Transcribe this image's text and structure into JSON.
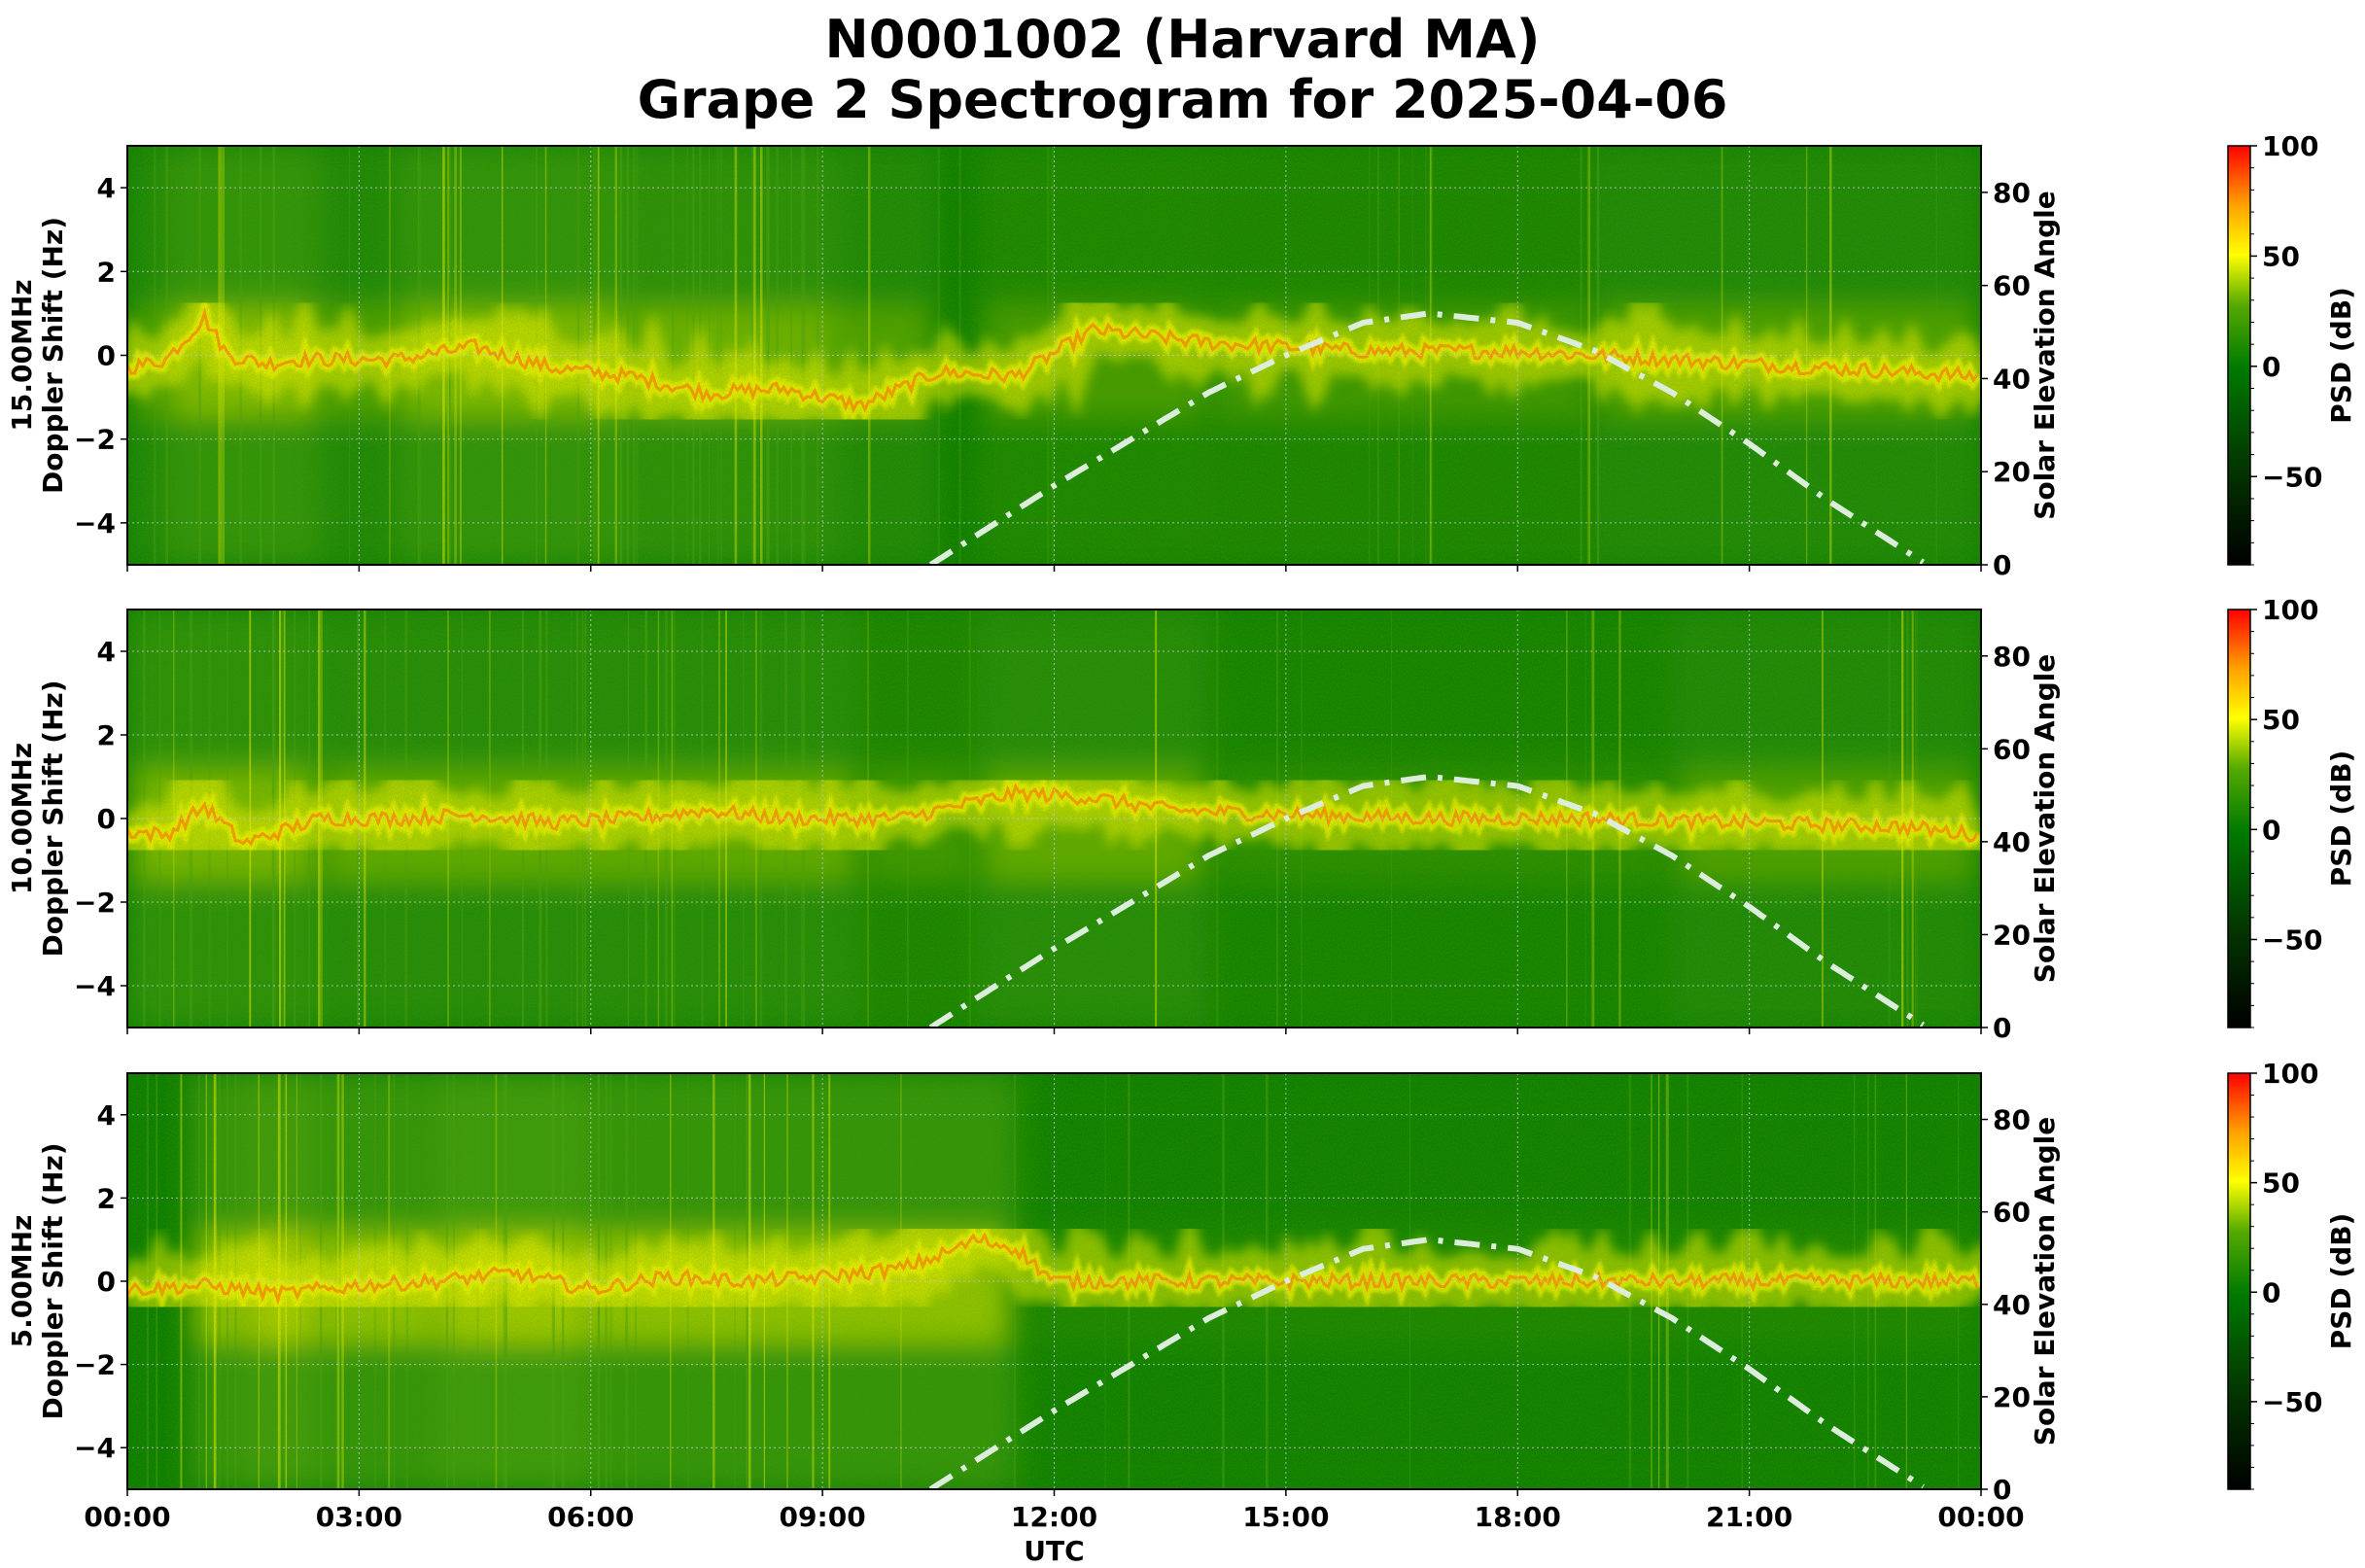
{
  "title": {
    "line1": "N0001002 (Harvard MA)",
    "line2": "Grape 2 Spectrogram for 2025-04-06"
  },
  "colors": {
    "background_green": "#0b7d00",
    "mid_green": "#4aa011",
    "yellow": "#eef000",
    "orange": "#ff8c00",
    "red": "#ff1a00",
    "solar_line": "#dceedb",
    "grid": "#c8c8c8"
  },
  "chart_data": [
    {
      "type": "heatmap",
      "panel": "15.00MHz",
      "ylabel_line1": "15.00MHz",
      "ylabel_line2": "Doppler Shift (Hz)",
      "xlabel": "",
      "ylim": [
        -5,
        5
      ],
      "yticks": [
        "4",
        "2",
        "0",
        "−2",
        "−4"
      ],
      "ytick_values": [
        4,
        2,
        0,
        -2,
        -4
      ],
      "right_ylabel": "Solar Elevation Angle",
      "right_ylim": [
        0,
        90
      ],
      "right_yticks": [
        "80",
        "60",
        "40",
        "20",
        "0"
      ],
      "right_ytick_values": [
        80,
        60,
        40,
        20,
        0
      ],
      "xlim_hours": [
        0,
        24
      ],
      "colorbar": {
        "label": "PSD (dB)",
        "range": [
          -90,
          100
        ],
        "ticks": [
          "100",
          "50",
          "0",
          "−50"
        ],
        "tick_values": [
          100,
          50,
          0,
          -50
        ]
      },
      "doppler_trace": {
        "hours": [
          0,
          0.5,
          1.0,
          1.3,
          1.8,
          2.2,
          3.5,
          4.5,
          5.5,
          6.5,
          7.5,
          8.5,
          9.5,
          10.5,
          11.5,
          12.5,
          14,
          16,
          18,
          20,
          22,
          24
        ],
        "hz": [
          -0.3,
          -0.1,
          0.9,
          0.0,
          -0.2,
          -0.1,
          -0.1,
          0.2,
          -0.3,
          -0.5,
          -0.9,
          -0.8,
          -1.2,
          -0.4,
          -0.5,
          0.6,
          0.3,
          0.1,
          0.1,
          -0.1,
          -0.3,
          -0.5
        ]
      },
      "solar_elevation": {
        "hours": [
          10.4,
          12,
          14,
          15,
          16,
          16.85,
          18,
          19,
          20,
          21,
          22,
          23.3
        ],
        "degrees": [
          0,
          17,
          37,
          45,
          52,
          54,
          52,
          46,
          37,
          26,
          14,
          0
        ]
      }
    },
    {
      "type": "heatmap",
      "panel": "10.00MHz",
      "ylabel_line1": "10.00MHz",
      "ylabel_line2": "Doppler Shift (Hz)",
      "xlabel": "",
      "ylim": [
        -5,
        5
      ],
      "yticks": [
        "4",
        "2",
        "0",
        "−2",
        "−4"
      ],
      "ytick_values": [
        4,
        2,
        0,
        -2,
        -4
      ],
      "right_ylabel": "Solar Elevation Angle",
      "right_ylim": [
        0,
        90
      ],
      "right_yticks": [
        "80",
        "60",
        "40",
        "20",
        "0"
      ],
      "right_ytick_values": [
        80,
        60,
        40,
        20,
        0
      ],
      "xlim_hours": [
        0,
        24
      ],
      "colorbar": {
        "label": "PSD (dB)",
        "range": [
          -90,
          100
        ],
        "ticks": [
          "100",
          "50",
          "0",
          "−50"
        ],
        "tick_values": [
          100,
          50,
          0,
          -50
        ]
      },
      "doppler_trace": {
        "hours": [
          0,
          0.5,
          1.0,
          1.5,
          2.5,
          3.5,
          4.5,
          5.5,
          6.5,
          7.5,
          8.5,
          10,
          11.5,
          12.5,
          13.5,
          15,
          17,
          19,
          21,
          23,
          24
        ],
        "hz": [
          -0.3,
          -0.4,
          0.3,
          -0.6,
          0.0,
          0.0,
          0.1,
          -0.1,
          0.0,
          0.2,
          0.0,
          0.0,
          0.6,
          0.5,
          0.2,
          0.1,
          0.0,
          0.0,
          -0.1,
          -0.2,
          -0.4
        ]
      },
      "solar_elevation": {
        "hours": [
          10.4,
          12,
          14,
          15,
          16,
          16.85,
          18,
          19,
          20,
          21,
          22,
          23.3
        ],
        "degrees": [
          0,
          17,
          37,
          45,
          52,
          54,
          52,
          46,
          37,
          26,
          14,
          0
        ]
      }
    },
    {
      "type": "heatmap",
      "panel": "5.00MHz",
      "ylabel_line1": "5.00MHz",
      "ylabel_line2": "Doppler Shift (Hz)",
      "xlabel": "UTC",
      "ylim": [
        -5,
        5
      ],
      "yticks": [
        "4",
        "2",
        "0",
        "−2",
        "−4"
      ],
      "ytick_values": [
        4,
        2,
        0,
        -2,
        -4
      ],
      "right_ylabel": "Solar Elevation Angle",
      "right_ylim": [
        0,
        90
      ],
      "right_yticks": [
        "80",
        "60",
        "40",
        "20",
        "0"
      ],
      "right_ytick_values": [
        80,
        60,
        40,
        20,
        0
      ],
      "xlim_hours": [
        0,
        24
      ],
      "xticks": [
        "00:00",
        "03:00",
        "06:00",
        "09:00",
        "12:00",
        "15:00",
        "18:00",
        "21:00",
        "00:00"
      ],
      "xtick_hours": [
        0,
        3,
        6,
        9,
        12,
        15,
        18,
        21,
        24
      ],
      "colorbar": {
        "label": "PSD (dB)",
        "range": [
          -90,
          100
        ],
        "ticks": [
          "100",
          "50",
          "0",
          "−50"
        ],
        "tick_values": [
          100,
          50,
          0,
          -50
        ]
      },
      "doppler_trace": {
        "hours": [
          0,
          1,
          2,
          3,
          4,
          5,
          6,
          7,
          8,
          9,
          10,
          10.5,
          11,
          11.5,
          12,
          15,
          18,
          21,
          24
        ],
        "hz": [
          -0.2,
          -0.1,
          -0.3,
          -0.1,
          0.0,
          0.2,
          -0.2,
          0.1,
          0.0,
          0.1,
          0.3,
          0.6,
          1.0,
          0.8,
          0.0,
          0.0,
          0.0,
          0.0,
          0.0
        ]
      },
      "solar_elevation": {
        "hours": [
          10.4,
          12,
          14,
          15,
          16,
          16.85,
          18,
          19,
          20,
          21,
          22,
          23.3
        ],
        "degrees": [
          0,
          17,
          37,
          45,
          52,
          54,
          52,
          46,
          37,
          26,
          14,
          0
        ]
      }
    }
  ]
}
